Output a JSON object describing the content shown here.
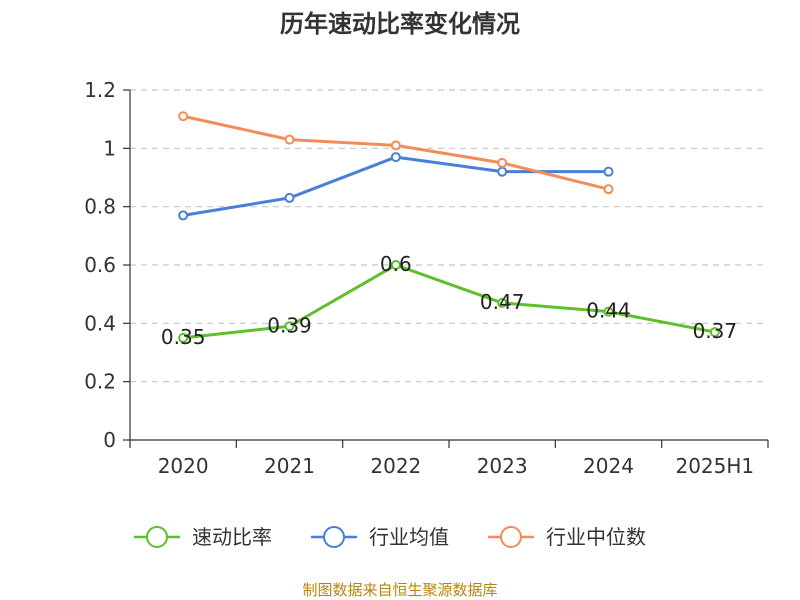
{
  "chart_data": {
    "type": "line",
    "title": "历年速动比率变化情况",
    "categories": [
      "2020",
      "2021",
      "2022",
      "2023",
      "2024",
      "2025H1"
    ],
    "ylim": [
      0,
      1.2
    ],
    "yticks": [
      "0",
      "0.2",
      "0.4",
      "0.6",
      "0.8",
      "1",
      "1.2"
    ],
    "grid": true,
    "legend_position": "bottom",
    "series": [
      {
        "name": "速动比率",
        "color": "#5dbf2a",
        "values": [
          0.35,
          0.39,
          0.6,
          0.47,
          0.44,
          0.37
        ],
        "labels": [
          "0.35",
          "0.39",
          "0.6",
          "0.47",
          "0.44",
          "0.37"
        ]
      },
      {
        "name": "行业均值",
        "color": "#4a7fd8",
        "values": [
          0.77,
          0.83,
          0.97,
          0.92,
          0.92,
          null
        ]
      },
      {
        "name": "行业中位数",
        "color": "#f28c5a",
        "values": [
          1.11,
          1.03,
          1.01,
          0.95,
          0.86,
          null
        ]
      }
    ],
    "source": "制图数据来自恒生聚源数据库"
  }
}
